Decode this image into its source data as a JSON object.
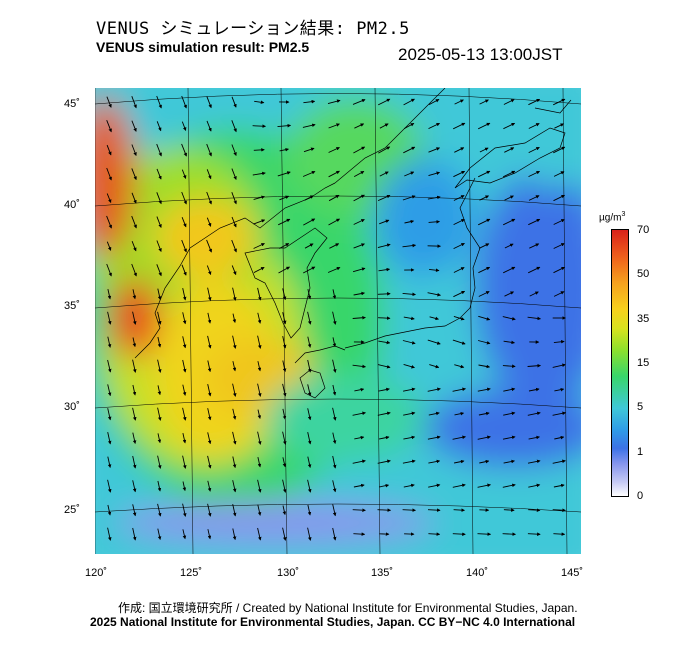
{
  "header": {
    "title_ja": "VENUS シミュレーション結果: PM2.5",
    "title_en": "VENUS simulation result: PM2.5",
    "timestamp": "2025-05-13 13:00JST"
  },
  "map": {
    "lat_labels": [
      "45˚",
      "40˚",
      "35˚",
      "30˚",
      "25˚"
    ],
    "lon_labels": [
      "120˚",
      "125˚",
      "130˚",
      "135˚",
      "140˚",
      "145˚"
    ],
    "extent": {
      "lon": [
        120,
        145
      ],
      "lat": [
        23,
        46
      ]
    },
    "colors": {
      "land": "#000000",
      "graticule": "#000000",
      "vectors": "#000000"
    }
  },
  "colorbar": {
    "unit_prefix": "µg/m",
    "unit_exp": "3",
    "ticks": [
      "70",
      "50",
      "35",
      "15",
      "5",
      "1",
      "0"
    ],
    "palette": [
      "#ffffff",
      "#8796ee",
      "#3c72e6",
      "#3fc8d8",
      "#38d66a",
      "#d8e21e",
      "#f6a21e",
      "#d8221a"
    ]
  },
  "credits": {
    "line1": "作成: 国立環境研究所 / Created by National Institute for Environmental Studies, Japan.",
    "line2": "2025 National Institute for Environmental Studies, Japan. CC BY−NC 4.0 International"
  }
}
